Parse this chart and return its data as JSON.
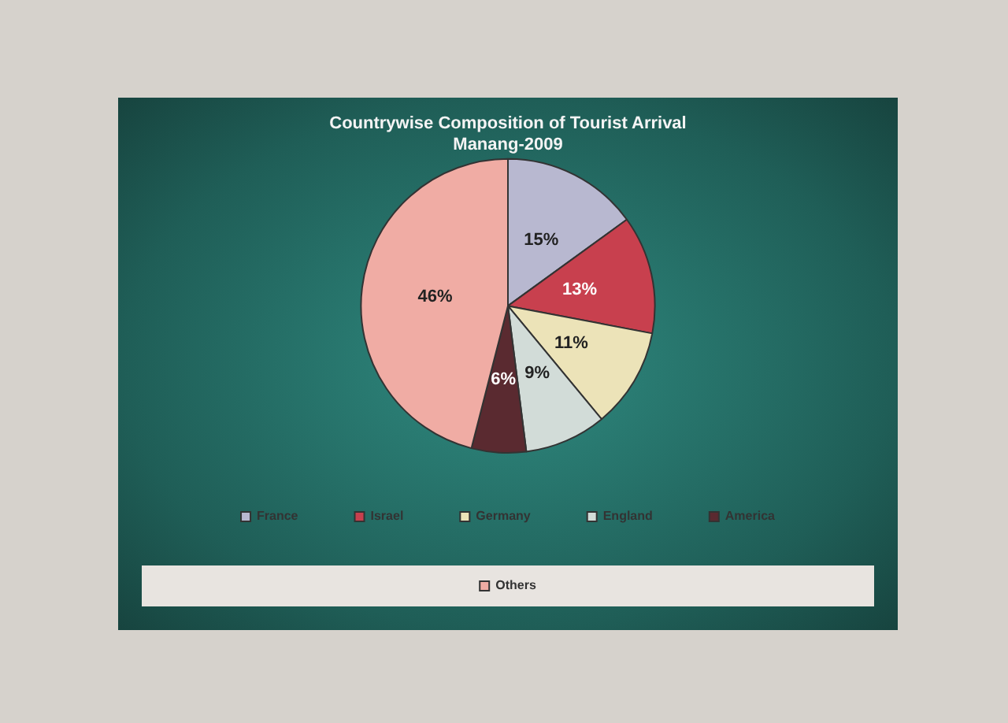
{
  "chart_data": {
    "type": "pie",
    "title": "Countrywise Composition of Tourist Arrival",
    "subtitle": "Manang-2009",
    "categories": [
      "France",
      "Israel",
      "Germany",
      "England",
      "America",
      "Others"
    ],
    "values": [
      15,
      13,
      11,
      9,
      6,
      46
    ],
    "colors": [
      "#b8b8d0",
      "#c8404e",
      "#ece3b8",
      "#d2dcd8",
      "#5a2a30",
      "#f0aca4"
    ],
    "value_labels": [
      "15%",
      "13%",
      "11%",
      "9%",
      "6%",
      "46%"
    ],
    "legend": "bottom"
  }
}
